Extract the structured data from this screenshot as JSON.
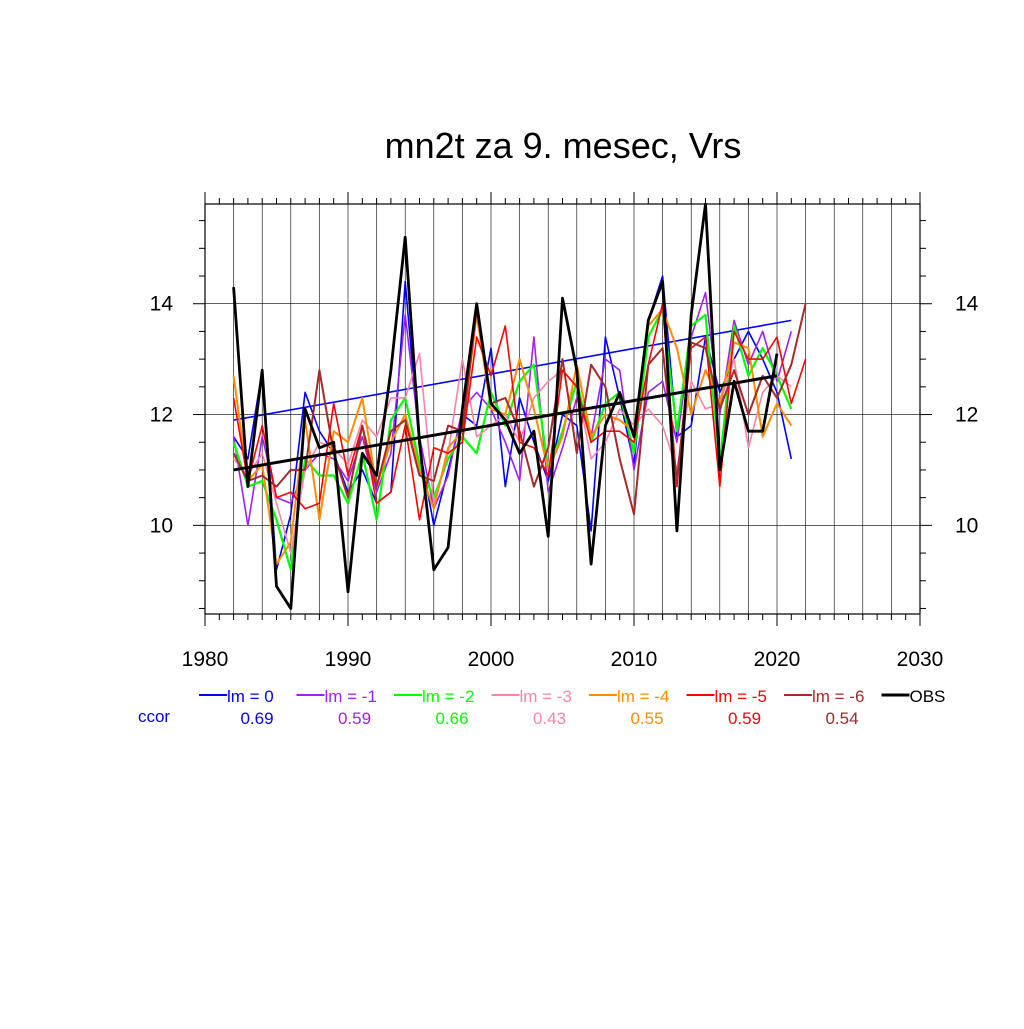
{
  "chart_data": {
    "type": "line",
    "title": "mn2t za 9. mesec, Vrs",
    "xlabel": "",
    "ylabel": "",
    "xlim": [
      1980,
      2030
    ],
    "ylim": [
      8.4,
      15.8
    ],
    "x_ticks": [
      1980,
      1990,
      2000,
      2010,
      2020,
      2030
    ],
    "y_ticks": [
      10,
      12,
      14
    ],
    "grid": "vertical minor every year, horizontal at major y ticks",
    "legend_position": "bottom",
    "ccor_label": "ccor",
    "ccor_color": "#0000ff",
    "series": [
      {
        "name": "lm = 0",
        "color": "#0000ff",
        "ccor": "0.69",
        "width": 1.6,
        "x": [
          1982,
          1983,
          1984,
          1985,
          1986,
          1987,
          1988,
          1989,
          1990,
          1991,
          1992,
          1993,
          1994,
          1995,
          1996,
          1997,
          1998,
          1999,
          2000,
          2001,
          2002,
          2003,
          2004,
          2005,
          2006,
          2007,
          2008,
          2009,
          2010,
          2011,
          2012,
          2013,
          2014,
          2015,
          2016,
          2017,
          2018,
          2019,
          2020,
          2021
        ],
        "values": [
          11.6,
          11.2,
          12.8,
          9.2,
          10.2,
          12.4,
          11.7,
          11.3,
          10.6,
          11.0,
          10.4,
          10.6,
          14.4,
          11.4,
          10.0,
          11.0,
          12.0,
          11.8,
          13.2,
          10.7,
          12.3,
          11.5,
          10.8,
          12.0,
          11.8,
          9.9,
          13.4,
          12.3,
          11.1,
          13.7,
          14.5,
          11.6,
          11.8,
          13.4,
          12.4,
          13.0,
          13.5,
          13.0,
          12.4,
          11.2
        ],
        "trend": [
          [
            1982,
            11.9
          ],
          [
            2021,
            13.7
          ]
        ]
      },
      {
        "name": "lm = -1",
        "color": "#a020f0",
        "ccor": "0.59",
        "width": 1.6,
        "x": [
          1982,
          1983,
          1984,
          1985,
          1986,
          1987,
          1988,
          1989,
          1990,
          1991,
          1992,
          1993,
          1994,
          1995,
          1996,
          1997,
          1998,
          1999,
          2000,
          2001,
          2002,
          2003,
          2004,
          2005,
          2006,
          2007,
          2008,
          2009,
          2010,
          2011,
          2012,
          2013,
          2014,
          2015,
          2016,
          2017,
          2018,
          2019,
          2020,
          2021
        ],
        "values": [
          11.6,
          10.0,
          11.6,
          10.5,
          10.4,
          11.0,
          11.3,
          11.2,
          10.8,
          11.6,
          10.6,
          11.3,
          13.8,
          11.6,
          10.3,
          10.9,
          12.1,
          12.4,
          12.1,
          11.5,
          10.8,
          13.4,
          10.6,
          11.4,
          12.3,
          11.6,
          13.0,
          12.8,
          11.0,
          12.4,
          12.6,
          11.5,
          13.4,
          14.2,
          12.0,
          13.7,
          12.9,
          13.5,
          12.6,
          13.5
        ]
      },
      {
        "name": "lm = -2",
        "color": "#00ff00",
        "ccor": "0.66",
        "width": 2.2,
        "x": [
          1982,
          1983,
          1984,
          1985,
          1986,
          1987,
          1988,
          1989,
          1990,
          1991,
          1992,
          1993,
          1994,
          1995,
          1996,
          1997,
          1998,
          1999,
          2000,
          2001,
          2002,
          2003,
          2004,
          2005,
          2006,
          2007,
          2008,
          2009,
          2010,
          2011,
          2012,
          2013,
          2014,
          2015,
          2016,
          2017,
          2018,
          2019,
          2020,
          2021
        ],
        "values": [
          11.5,
          10.7,
          10.8,
          10.1,
          9.2,
          11.2,
          10.9,
          10.9,
          10.4,
          11.3,
          10.1,
          11.9,
          12.3,
          11.1,
          10.5,
          11.2,
          11.6,
          11.3,
          12.4,
          11.8,
          12.6,
          12.9,
          11.0,
          11.7,
          12.6,
          11.5,
          12.2,
          12.4,
          11.3,
          13.4,
          13.9,
          11.7,
          13.6,
          13.8,
          11.1,
          13.6,
          12.7,
          13.2,
          12.7,
          12.1
        ]
      },
      {
        "name": "lm = -3",
        "color": "#ff82ab",
        "ccor": "0.43",
        "width": 1.6,
        "x": [
          1982,
          1983,
          1984,
          1985,
          1986,
          1987,
          1988,
          1989,
          1990,
          1991,
          1992,
          1993,
          1994,
          1995,
          1996,
          1997,
          1998,
          1999,
          2000,
          2001,
          2002,
          2003,
          2004,
          2005,
          2006,
          2007,
          2008,
          2009,
          2010,
          2011,
          2012,
          2013,
          2014,
          2015,
          2016,
          2017,
          2018,
          2019,
          2020,
          2021
        ],
        "values": [
          11.2,
          10.9,
          11.3,
          10.4,
          9.5,
          11.0,
          11.5,
          11.4,
          11.1,
          11.9,
          11.6,
          12.3,
          12.3,
          13.1,
          10.4,
          11.3,
          13.0,
          11.6,
          11.8,
          12.0,
          11.5,
          12.3,
          12.6,
          12.8,
          12.5,
          11.2,
          11.5,
          12.1,
          11.8,
          12.1,
          11.8,
          11.0,
          12.6,
          12.1,
          12.2,
          13.0,
          11.4,
          12.4,
          12.7,
          12.5
        ]
      },
      {
        "name": "lm = -4",
        "color": "#ff8c00",
        "ccor": "0.55",
        "width": 2.0,
        "x": [
          1982,
          1983,
          1984,
          1985,
          1986,
          1987,
          1988,
          1989,
          1990,
          1991,
          1992,
          1993,
          1994,
          1995,
          1996,
          1997,
          1998,
          1999,
          2000,
          2001,
          2002,
          2003,
          2004,
          2005,
          2006,
          2007,
          2008,
          2009,
          2010,
          2011,
          2012,
          2013,
          2014,
          2015,
          2016,
          2017,
          2018,
          2019,
          2020,
          2021
        ],
        "values": [
          12.7,
          10.8,
          11.1,
          9.3,
          9.7,
          11.9,
          10.1,
          11.7,
          11.5,
          12.3,
          10.7,
          11.5,
          12.0,
          11.0,
          10.3,
          11.4,
          11.7,
          13.8,
          12.1,
          12.0,
          13.0,
          12.1,
          11.0,
          11.6,
          12.9,
          11.6,
          12.0,
          11.9,
          11.7,
          13.6,
          13.9,
          13.2,
          12.0,
          12.8,
          12.2,
          13.3,
          13.2,
          11.6,
          12.2,
          11.8
        ]
      },
      {
        "name": "lm = -5",
        "color": "#ff0000",
        "ccor": "0.59",
        "width": 1.6,
        "x": [
          1982,
          1983,
          1984,
          1985,
          1986,
          1987,
          1988,
          1989,
          1990,
          1991,
          1992,
          1993,
          1994,
          1995,
          1996,
          1997,
          1998,
          1999,
          2000,
          2001,
          2002,
          2003,
          2004,
          2005,
          2006,
          2007,
          2008,
          2009,
          2010,
          2011,
          2012,
          2013,
          2014,
          2015,
          2016,
          2017,
          2018,
          2019,
          2020,
          2021,
          2022
        ],
        "values": [
          12.3,
          10.8,
          11.8,
          10.5,
          10.6,
          10.3,
          10.4,
          12.2,
          10.9,
          11.8,
          10.4,
          10.6,
          11.8,
          10.1,
          11.4,
          11.3,
          11.5,
          13.4,
          12.7,
          13.6,
          11.5,
          11.4,
          10.9,
          12.8,
          12.5,
          11.5,
          11.7,
          11.7,
          11.5,
          12.9,
          14.0,
          10.7,
          13.2,
          13.4,
          10.7,
          13.5,
          13.0,
          13.0,
          13.4,
          12.2,
          13.0
        ]
      },
      {
        "name": "lm = -6",
        "color": "#a52a2a",
        "ccor": "0.54",
        "width": 2.0,
        "x": [
          1982,
          1983,
          1984,
          1985,
          1986,
          1987,
          1988,
          1989,
          1990,
          1991,
          1992,
          1993,
          1994,
          1995,
          1996,
          1997,
          1998,
          1999,
          2000,
          2001,
          2002,
          2003,
          2004,
          2005,
          2006,
          2007,
          2008,
          2009,
          2010,
          2011,
          2012,
          2013,
          2014,
          2015,
          2016,
          2017,
          2018,
          2019,
          2020,
          2021,
          2022
        ],
        "values": [
          11.3,
          10.8,
          10.9,
          10.7,
          11.0,
          11.0,
          12.8,
          11.3,
          10.5,
          11.8,
          10.7,
          11.7,
          11.9,
          10.9,
          10.8,
          11.8,
          11.7,
          13.9,
          12.2,
          12.3,
          11.7,
          10.7,
          11.4,
          13.0,
          11.3,
          12.9,
          12.5,
          11.2,
          10.2,
          12.9,
          13.2,
          10.8,
          13.3,
          13.2,
          12.1,
          12.8,
          12.0,
          12.7,
          12.3,
          12.9,
          14.0
        ]
      },
      {
        "name": "OBS",
        "color": "#000000",
        "ccor": "",
        "width": 2.8,
        "x": [
          1982,
          1983,
          1984,
          1985,
          1986,
          1987,
          1988,
          1989,
          1990,
          1991,
          1992,
          1993,
          1994,
          1995,
          1996,
          1997,
          1998,
          1999,
          2000,
          2001,
          2002,
          2003,
          2004,
          2005,
          2006,
          2007,
          2008,
          2009,
          2010,
          2011,
          2012,
          2013,
          2014,
          2015,
          2016,
          2017,
          2018,
          2019,
          2020
        ],
        "values": [
          14.3,
          10.7,
          12.8,
          8.9,
          8.5,
          12.1,
          11.4,
          11.5,
          8.8,
          11.3,
          10.9,
          12.8,
          15.2,
          11.5,
          9.2,
          9.6,
          12.1,
          14.0,
          12.2,
          11.9,
          11.3,
          11.7,
          9.8,
          14.1,
          12.8,
          9.3,
          11.8,
          12.4,
          11.6,
          13.7,
          14.4,
          9.9,
          13.8,
          15.8,
          11.0,
          12.6,
          11.7,
          11.7,
          13.1
        ],
        "trend": [
          [
            1982,
            11.0
          ],
          [
            2020,
            12.7
          ]
        ]
      }
    ]
  }
}
